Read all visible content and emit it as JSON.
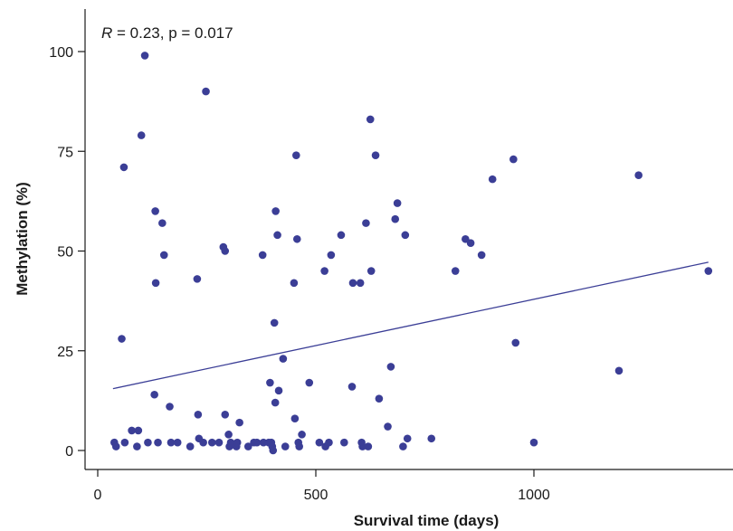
{
  "chart_data": {
    "type": "scatter",
    "title": "",
    "annotation": {
      "stat_symbol": "R",
      "stat_rest": " = 0.23, p = 0.017"
    },
    "xlabel": "Survival time (days)",
    "ylabel": "Methylation (%)",
    "xlim": [
      -30,
      1410
    ],
    "ylim": [
      -4,
      110
    ],
    "x_ticks": [
      0,
      500,
      1000
    ],
    "y_ticks": [
      0,
      25,
      50,
      75,
      100
    ],
    "grid": false,
    "colors": {
      "points": "#3b3e96",
      "line": "#3b3e96",
      "axis": "#1a1a1a"
    },
    "regression_line": {
      "x": [
        35,
        1400
      ],
      "y": [
        15.5,
        47.2
      ]
    },
    "points": [
      {
        "x": 38,
        "y": 2
      },
      {
        "x": 42,
        "y": 1
      },
      {
        "x": 55,
        "y": 28
      },
      {
        "x": 60,
        "y": 71
      },
      {
        "x": 62,
        "y": 2
      },
      {
        "x": 78,
        "y": 5
      },
      {
        "x": 90,
        "y": 1
      },
      {
        "x": 93,
        "y": 5
      },
      {
        "x": 100,
        "y": 79
      },
      {
        "x": 108,
        "y": 99
      },
      {
        "x": 115,
        "y": 2
      },
      {
        "x": 130,
        "y": 14
      },
      {
        "x": 132,
        "y": 60
      },
      {
        "x": 133,
        "y": 42
      },
      {
        "x": 138,
        "y": 2
      },
      {
        "x": 148,
        "y": 57
      },
      {
        "x": 152,
        "y": 49
      },
      {
        "x": 165,
        "y": 11
      },
      {
        "x": 168,
        "y": 2
      },
      {
        "x": 183,
        "y": 2
      },
      {
        "x": 212,
        "y": 1
      },
      {
        "x": 228,
        "y": 43
      },
      {
        "x": 230,
        "y": 9
      },
      {
        "x": 232,
        "y": 3
      },
      {
        "x": 242,
        "y": 2
      },
      {
        "x": 248,
        "y": 90
      },
      {
        "x": 262,
        "y": 2
      },
      {
        "x": 278,
        "y": 2
      },
      {
        "x": 288,
        "y": 51
      },
      {
        "x": 292,
        "y": 50
      },
      {
        "x": 292,
        "y": 9
      },
      {
        "x": 300,
        "y": 4
      },
      {
        "x": 302,
        "y": 1
      },
      {
        "x": 305,
        "y": 2
      },
      {
        "x": 318,
        "y": 1
      },
      {
        "x": 320,
        "y": 2
      },
      {
        "x": 325,
        "y": 7
      },
      {
        "x": 345,
        "y": 1
      },
      {
        "x": 358,
        "y": 2
      },
      {
        "x": 365,
        "y": 2
      },
      {
        "x": 378,
        "y": 49
      },
      {
        "x": 380,
        "y": 2
      },
      {
        "x": 392,
        "y": 2
      },
      {
        "x": 395,
        "y": 17
      },
      {
        "x": 398,
        "y": 2
      },
      {
        "x": 400,
        "y": 1
      },
      {
        "x": 402,
        "y": 0
      },
      {
        "x": 405,
        "y": 32
      },
      {
        "x": 407,
        "y": 12
      },
      {
        "x": 408,
        "y": 60
      },
      {
        "x": 412,
        "y": 54
      },
      {
        "x": 415,
        "y": 15
      },
      {
        "x": 425,
        "y": 23
      },
      {
        "x": 430,
        "y": 1
      },
      {
        "x": 450,
        "y": 42
      },
      {
        "x": 452,
        "y": 8
      },
      {
        "x": 455,
        "y": 74
      },
      {
        "x": 457,
        "y": 53
      },
      {
        "x": 460,
        "y": 2
      },
      {
        "x": 462,
        "y": 1
      },
      {
        "x": 468,
        "y": 4
      },
      {
        "x": 485,
        "y": 17
      },
      {
        "x": 508,
        "y": 2
      },
      {
        "x": 520,
        "y": 45
      },
      {
        "x": 522,
        "y": 1
      },
      {
        "x": 530,
        "y": 2
      },
      {
        "x": 535,
        "y": 49
      },
      {
        "x": 558,
        "y": 54
      },
      {
        "x": 565,
        "y": 2
      },
      {
        "x": 583,
        "y": 16
      },
      {
        "x": 585,
        "y": 42
      },
      {
        "x": 602,
        "y": 42
      },
      {
        "x": 605,
        "y": 2
      },
      {
        "x": 607,
        "y": 1
      },
      {
        "x": 615,
        "y": 57
      },
      {
        "x": 620,
        "y": 1
      },
      {
        "x": 625,
        "y": 83
      },
      {
        "x": 627,
        "y": 45
      },
      {
        "x": 637,
        "y": 74
      },
      {
        "x": 645,
        "y": 13
      },
      {
        "x": 665,
        "y": 6
      },
      {
        "x": 672,
        "y": 21
      },
      {
        "x": 682,
        "y": 58
      },
      {
        "x": 687,
        "y": 62
      },
      {
        "x": 700,
        "y": 1
      },
      {
        "x": 705,
        "y": 54
      },
      {
        "x": 710,
        "y": 3
      },
      {
        "x": 765,
        "y": 3
      },
      {
        "x": 820,
        "y": 45
      },
      {
        "x": 843,
        "y": 53
      },
      {
        "x": 855,
        "y": 52
      },
      {
        "x": 880,
        "y": 49
      },
      {
        "x": 905,
        "y": 68
      },
      {
        "x": 953,
        "y": 73
      },
      {
        "x": 958,
        "y": 27
      },
      {
        "x": 1000,
        "y": 2
      },
      {
        "x": 1195,
        "y": 20
      },
      {
        "x": 1240,
        "y": 69
      },
      {
        "x": 1400,
        "y": 45
      }
    ]
  }
}
